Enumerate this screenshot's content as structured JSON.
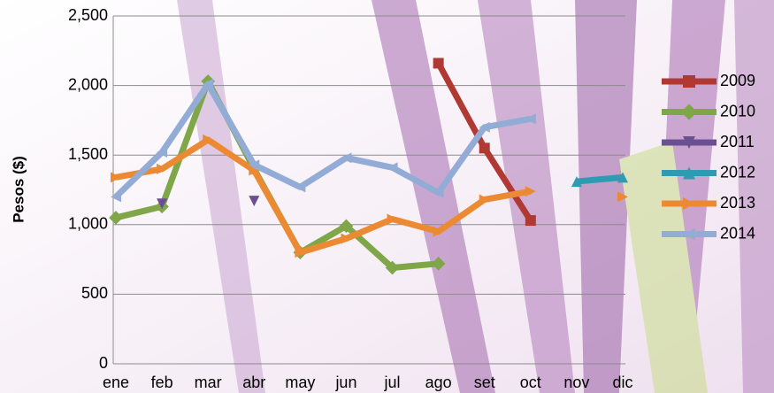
{
  "chart_data": {
    "type": "line",
    "y_label": "Pesos ($)",
    "categories": [
      "ene",
      "feb",
      "mar",
      "abr",
      "may",
      "jun",
      "jul",
      "ago",
      "set",
      "oct",
      "nov",
      "dic"
    ],
    "ylim": [
      0,
      2500
    ],
    "yticks": [
      0,
      500,
      {
        "value": 1000,
        "label": "1,000"
      },
      {
        "value": 1500,
        "label": "1,500"
      },
      {
        "value": 2000,
        "label": "2,000"
      },
      {
        "value": 2500,
        "label": "2,500"
      }
    ],
    "grid": true,
    "legend": "right",
    "series": [
      {
        "name": "2009",
        "color": "#b03a33",
        "marker": "square",
        "values": [
          null,
          null,
          null,
          null,
          null,
          null,
          null,
          2160,
          1550,
          1030,
          null,
          null
        ]
      },
      {
        "name": "2010",
        "color": "#7fa648",
        "marker": "diamond",
        "values": [
          1050,
          1130,
          2030,
          1400,
          800,
          990,
          690,
          720,
          null,
          null,
          null,
          null
        ]
      },
      {
        "name": "2011",
        "color": "#6a4f92",
        "marker": "triangle-down",
        "values": [
          null,
          1150,
          null,
          1170,
          null,
          null,
          null,
          null,
          null,
          null,
          null,
          null
        ]
      },
      {
        "name": "2012",
        "color": "#2f9bb3",
        "marker": "triangle-up",
        "values": [
          null,
          null,
          null,
          null,
          null,
          null,
          null,
          null,
          null,
          null,
          1310,
          1340
        ]
      },
      {
        "name": "2013",
        "color": "#ec8a34",
        "marker": "triangle-right",
        "values": [
          1340,
          1400,
          1610,
          1390,
          800,
          900,
          1040,
          950,
          1180,
          1240,
          null,
          1200
        ]
      },
      {
        "name": "2014",
        "color": "#93acd6",
        "marker": "triangle-left",
        "values": [
          1200,
          1520,
          2010,
          1430,
          1270,
          1480,
          1410,
          1230,
          1700,
          1760,
          null,
          null
        ]
      }
    ]
  }
}
